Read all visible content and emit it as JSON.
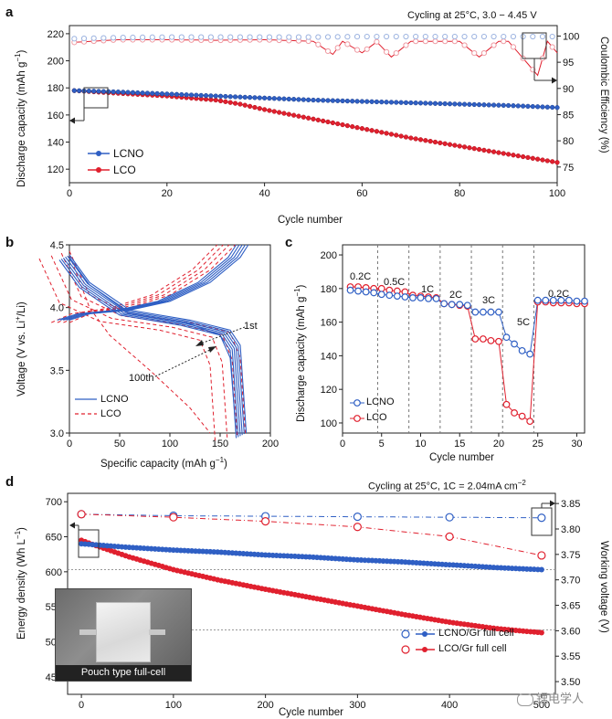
{
  "panels": {
    "a": {
      "label": "a",
      "note": "Cycling at 25°C, 3.0 − 4.45 V",
      "xlabel": "Cycle number",
      "ylabel": "Discharge capacity (mAh g",
      "ylabel_sup": "−1",
      "ylabel_close": ")",
      "y2label": "Coulombic Efficiency (%)",
      "legend": [
        "LCNO",
        "LCO"
      ]
    },
    "b": {
      "label": "b",
      "xlabel": "Specific capacity (mAh g",
      "xlabel_sup": "−1",
      "xlabel_close": ")",
      "ylabel": "Voltage (V vs. Li",
      "ylabel_sup": "+",
      "ylabel_close": "/Li)",
      "annotations": [
        "1st",
        "100th"
      ],
      "legend": [
        "LCNO",
        "LCO"
      ]
    },
    "c": {
      "label": "c",
      "xlabel": "Cycle number",
      "ylabel": "Discharge capacity (mAh g",
      "ylabel_sup": "−1",
      "ylabel_close": ")",
      "rates": [
        "0.2C",
        "0.5C",
        "1C",
        "2C",
        "3C",
        "5C",
        "0.2C"
      ],
      "legend": [
        "LCNO",
        "LCO"
      ]
    },
    "d": {
      "label": "d",
      "note": "Cycling at 25°C, 1C = 2.04mA cm",
      "note_sup": "−2",
      "xlabel": "Cycle number",
      "ylabel": "Energy density (Wh L",
      "ylabel_sup": "−1",
      "ylabel_close": ")",
      "y2label": "Working voltage (V)",
      "legend": [
        "LCNO/Gr full cell",
        "LCO/Gr full cell"
      ],
      "photo_caption": "Pouch type full-cell"
    }
  },
  "watermark": "锂电学人",
  "colors": {
    "LCNO": "#2f5fc4",
    "LCO": "#e0202e",
    "LCNO_light": "#9cb3e0",
    "LCO_light": "#ef9aa2"
  },
  "chart_data": [
    {
      "panel": "a",
      "type": "line",
      "xlim": [
        0,
        100
      ],
      "ylim": [
        110,
        226
      ],
      "y2lim": [
        72,
        102
      ],
      "xticks": [
        0,
        20,
        40,
        60,
        80,
        100
      ],
      "yticks": [
        120,
        140,
        160,
        180,
        200,
        220
      ],
      "y2ticks": [
        75,
        80,
        85,
        90,
        95,
        100
      ],
      "series": [
        {
          "name": "LCNO",
          "axis": "left",
          "x": [
            1,
            10,
            20,
            30,
            40,
            50,
            60,
            70,
            80,
            90,
            100
          ],
          "values": [
            178,
            177,
            175.5,
            174,
            172.5,
            171,
            170,
            169,
            168,
            167,
            165.5
          ]
        },
        {
          "name": "LCO",
          "axis": "left",
          "x": [
            1,
            10,
            20,
            30,
            35,
            40,
            50,
            60,
            70,
            80,
            90,
            100
          ],
          "values": [
            178,
            176,
            174,
            171,
            168,
            164,
            157,
            150,
            143,
            137,
            131,
            125
          ]
        },
        {
          "name": "LCNO CE",
          "axis": "right",
          "x": [
            1,
            10,
            20,
            30,
            40,
            50,
            60,
            70,
            80,
            90,
            100
          ],
          "values": [
            99.5,
            99.7,
            99.8,
            99.8,
            99.8,
            99.8,
            99.9,
            99.9,
            99.9,
            99.9,
            99.9
          ]
        },
        {
          "name": "LCO CE",
          "axis": "right",
          "x": [
            1,
            10,
            20,
            30,
            40,
            50,
            54,
            56,
            60,
            63,
            66,
            70,
            80,
            84,
            88,
            90,
            96,
            98,
            100
          ],
          "values": [
            98.8,
            99.3,
            99.3,
            99.2,
            99.3,
            99.0,
            96.5,
            99,
            96.8,
            98.9,
            96.0,
            99,
            99,
            96.0,
            99,
            99,
            92.5,
            99,
            96.8
          ]
        }
      ]
    },
    {
      "panel": "b",
      "type": "line",
      "xlim": [
        0,
        200
      ],
      "ylim": [
        3.0,
        4.5
      ],
      "xticks": [
        0,
        50,
        100,
        150,
        200
      ],
      "yticks": [
        3.0,
        3.5,
        4.0,
        4.5
      ],
      "series": [
        {
          "name": "LCNO",
          "charge_1st": [
            [
              0,
              3.9
            ],
            [
              20,
              3.95
            ],
            [
              60,
              3.98
            ],
            [
              100,
              4.05
            ],
            [
              140,
              4.2
            ],
            [
              170,
              4.4
            ],
            [
              178,
              4.5
            ]
          ],
          "discharge_1st": [
            [
              0,
              4.42
            ],
            [
              20,
              4.2
            ],
            [
              60,
              3.98
            ],
            [
              120,
              3.9
            ],
            [
              160,
              3.82
            ],
            [
              170,
              3.7
            ],
            [
              176,
              3.0
            ]
          ],
          "discharge_100th": [
            [
              0,
              4.4
            ],
            [
              20,
              4.18
            ],
            [
              60,
              3.95
            ],
            [
              120,
              3.87
            ],
            [
              150,
              3.78
            ],
            [
              160,
              3.6
            ],
            [
              166,
              3.0
            ]
          ]
        },
        {
          "name": "LCO",
          "charge_1st": [
            [
              0,
              3.88
            ],
            [
              20,
              3.95
            ],
            [
              60,
              4.0
            ],
            [
              100,
              4.1
            ],
            [
              140,
              4.3
            ],
            [
              165,
              4.5
            ]
          ],
          "discharge_1st": [
            [
              0,
              4.45
            ],
            [
              20,
              4.1
            ],
            [
              60,
              3.95
            ],
            [
              120,
              3.88
            ],
            [
              160,
              3.8
            ],
            [
              170,
              3.6
            ],
            [
              175,
              3.0
            ]
          ],
          "discharge_100th": [
            [
              0,
              4.42
            ],
            [
              20,
              4.0
            ],
            [
              40,
              3.78
            ],
            [
              80,
              3.5
            ],
            [
              120,
              3.2
            ],
            [
              140,
              3.0
            ]
          ]
        }
      ]
    },
    {
      "panel": "c",
      "type": "scatter",
      "xlim": [
        0,
        31
      ],
      "ylim": [
        94,
        206
      ],
      "xticks": [
        0,
        5,
        10,
        15,
        20,
        25,
        30
      ],
      "yticks": [
        100,
        120,
        140,
        160,
        180,
        200
      ],
      "rate_boundaries": [
        4.5,
        8.5,
        12.5,
        16.5,
        20.5,
        24.5
      ],
      "series": [
        {
          "name": "LCNO",
          "x": [
            1,
            2,
            3,
            4,
            5,
            6,
            7,
            8,
            9,
            10,
            11,
            12,
            13,
            14,
            15,
            16,
            17,
            18,
            19,
            20,
            21,
            22,
            23,
            24,
            25,
            26,
            27,
            28,
            29,
            30,
            31
          ],
          "values": [
            179,
            178.5,
            178,
            177.5,
            176.5,
            176,
            175.5,
            175,
            174.5,
            174.5,
            174,
            174,
            171,
            170.5,
            170.5,
            170,
            166,
            166,
            166,
            166,
            151,
            147,
            143,
            141,
            173,
            173,
            173,
            173,
            173,
            172.5,
            172.5
          ]
        },
        {
          "name": "LCO",
          "x": [
            1,
            2,
            3,
            4,
            5,
            6,
            7,
            8,
            9,
            10,
            11,
            12,
            13,
            14,
            15,
            16,
            17,
            18,
            19,
            20,
            21,
            22,
            23,
            24,
            25,
            26,
            27,
            28,
            29,
            30,
            31
          ],
          "values": [
            181,
            181,
            180.5,
            180,
            180,
            179,
            178.5,
            178,
            176,
            175.5,
            175,
            174.5,
            171,
            170.5,
            170,
            169.5,
            150,
            150,
            149,
            148.5,
            111,
            106,
            104,
            101,
            172,
            172,
            171.5,
            171.5,
            171.5,
            171,
            171
          ]
        }
      ]
    },
    {
      "panel": "d",
      "type": "line",
      "xlim": [
        -15,
        515
      ],
      "ylim": [
        425,
        712
      ],
      "y2lim": [
        3.475,
        3.87
      ],
      "xticks": [
        0,
        100,
        200,
        300,
        400,
        500
      ],
      "yticks": [
        450,
        500,
        550,
        600,
        650,
        700
      ],
      "y2ticks": [
        3.5,
        3.55,
        3.6,
        3.65,
        3.7,
        3.75,
        3.8,
        3.85
      ],
      "series": [
        {
          "name": "LCNO/Gr full cell",
          "axis": "left",
          "x": [
            0,
            50,
            100,
            150,
            200,
            250,
            300,
            350,
            400,
            450,
            500
          ],
          "values": [
            640,
            635,
            631,
            628,
            624,
            621,
            617,
            614,
            610,
            606,
            603
          ]
        },
        {
          "name": "LCO/Gr full cell",
          "axis": "left",
          "x": [
            0,
            10,
            50,
            100,
            150,
            200,
            250,
            300,
            350,
            400,
            450,
            500
          ],
          "values": [
            645,
            640,
            622,
            603,
            588,
            575,
            563,
            551,
            539,
            528,
            519,
            513
          ]
        },
        {
          "name": "LCNO/Gr voltage",
          "axis": "right",
          "x": [
            0,
            100,
            200,
            300,
            400,
            500
          ],
          "values": [
            3.829,
            3.826,
            3.825,
            3.824,
            3.823,
            3.822
          ]
        },
        {
          "name": "LCO/Gr voltage",
          "axis": "right",
          "x": [
            0,
            100,
            200,
            300,
            400,
            500
          ],
          "values": [
            3.829,
            3.823,
            3.815,
            3.804,
            3.785,
            3.748
          ]
        }
      ]
    }
  ]
}
